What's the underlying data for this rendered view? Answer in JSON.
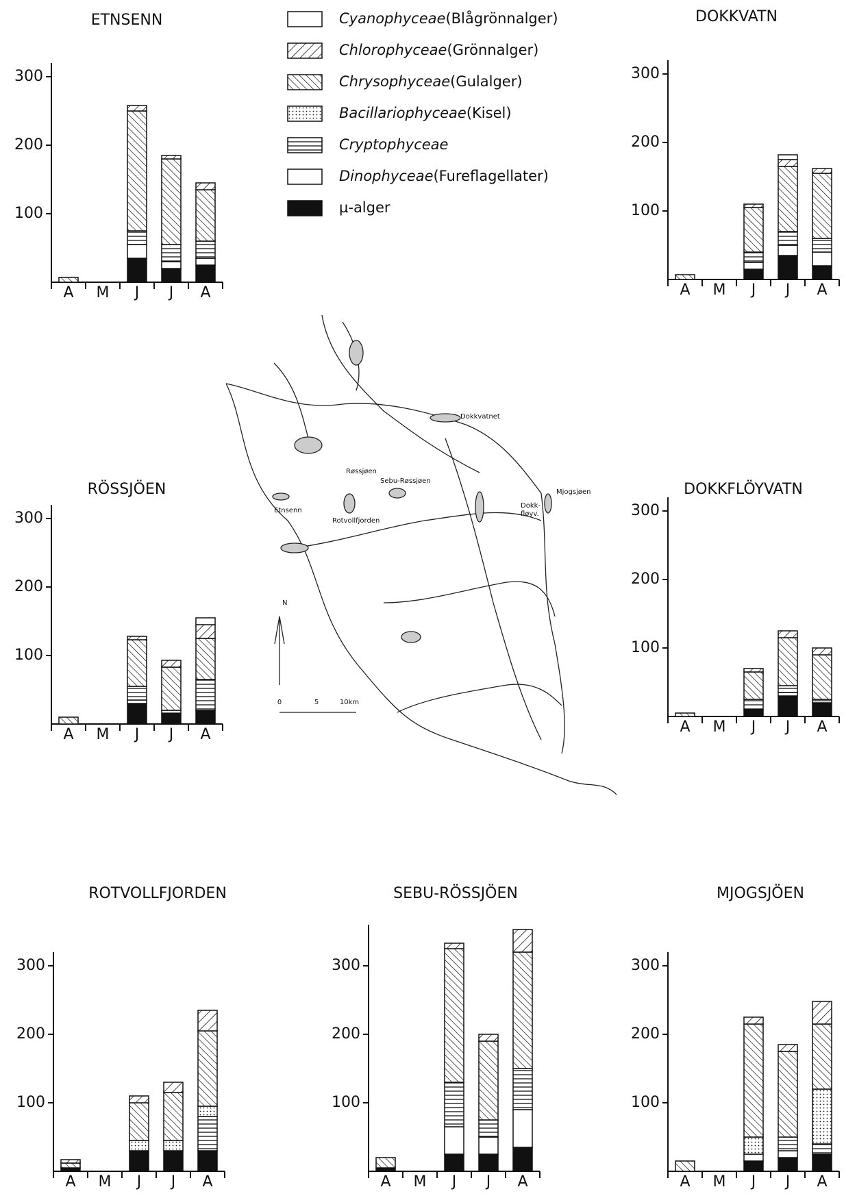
{
  "legend": [
    {
      "name": "Cyanophyceae",
      "note": "(Blågrönnalger)",
      "pattern": "blank"
    },
    {
      "name": "Chlorophyceae",
      "note": "(Grönnalger)",
      "pattern": "hatch-forward"
    },
    {
      "name": "Chrysophyceae",
      "note": "(Gulalger)",
      "pattern": "hatch-back"
    },
    {
      "name": "Bacillariophyceae",
      "note": "(Kisel)",
      "pattern": "dots"
    },
    {
      "name": "Cryptophyceae",
      "note": null,
      "pattern": "lines"
    },
    {
      "name": "Dinophyceae",
      "note": "(Fureflagellater)",
      "pattern": "blank"
    },
    {
      "name": "µ-alger",
      "note": null,
      "pattern": "solid"
    }
  ],
  "map": {
    "labels": [
      "Dokkvatnet",
      "Røssjøen",
      "Sebu-Røssjøen",
      "Mjogsjøen",
      "Etnsenn",
      "Rotvollfjorden",
      "Dokk-",
      "fløyv."
    ],
    "north": "N",
    "scale": [
      "0",
      "5",
      "10km"
    ]
  },
  "chart_data": [
    {
      "type": "stacked-bar",
      "title": "ETNSENN",
      "categories": [
        "A",
        "M",
        "J",
        "J",
        "A"
      ],
      "ylim": [
        0,
        320
      ],
      "yticks": [
        100,
        200,
        300
      ],
      "series": [
        {
          "values": [
            0,
            0,
            0,
            0,
            0
          ]
        },
        {
          "values": [
            0,
            0,
            8,
            5,
            10
          ]
        },
        {
          "values": [
            7,
            0,
            175,
            125,
            75
          ]
        },
        {
          "values": [
            0,
            0,
            0,
            0,
            0
          ]
        },
        {
          "values": [
            0,
            0,
            20,
            25,
            25
          ]
        },
        {
          "values": [
            0,
            0,
            20,
            10,
            10
          ]
        },
        {
          "values": [
            0,
            0,
            35,
            20,
            25
          ]
        }
      ]
    },
    {
      "type": "stacked-bar",
      "title": "DOKKVATN",
      "categories": [
        "A",
        "M",
        "J",
        "J",
        "A"
      ],
      "ylim": [
        0,
        320
      ],
      "yticks": [
        100,
        200,
        300
      ],
      "series": [
        {
          "values": [
            0,
            0,
            0,
            7,
            0
          ]
        },
        {
          "values": [
            0,
            0,
            5,
            10,
            7
          ]
        },
        {
          "values": [
            7,
            0,
            65,
            95,
            95
          ]
        },
        {
          "values": [
            0,
            0,
            0,
            0,
            0
          ]
        },
        {
          "values": [
            0,
            0,
            15,
            20,
            20
          ]
        },
        {
          "values": [
            0,
            0,
            10,
            15,
            20
          ]
        },
        {
          "values": [
            0,
            0,
            15,
            35,
            20
          ]
        }
      ]
    },
    {
      "type": "stacked-bar",
      "title": "RÖSSJÖEN",
      "categories": [
        "A",
        "M",
        "J",
        "J",
        "A"
      ],
      "ylim": [
        0,
        320
      ],
      "yticks": [
        100,
        200,
        300
      ],
      "series": [
        {
          "values": [
            0,
            0,
            0,
            0,
            10
          ]
        },
        {
          "values": [
            0,
            0,
            5,
            10,
            20
          ]
        },
        {
          "values": [
            10,
            0,
            68,
            63,
            60
          ]
        },
        {
          "values": [
            0,
            0,
            0,
            0,
            0
          ]
        },
        {
          "values": [
            0,
            0,
            20,
            5,
            45
          ]
        },
        {
          "values": [
            0,
            0,
            5,
            0,
            0
          ]
        },
        {
          "values": [
            0,
            0,
            30,
            15,
            20
          ]
        }
      ]
    },
    {
      "type": "stacked-bar",
      "title": "DOKKFLÖYVATN",
      "categories": [
        "A",
        "M",
        "J",
        "J",
        "A"
      ],
      "ylim": [
        0,
        320
      ],
      "yticks": [
        100,
        200,
        300
      ],
      "series": [
        {
          "values": [
            0,
            0,
            0,
            0,
            0
          ]
        },
        {
          "values": [
            0,
            0,
            5,
            10,
            10
          ]
        },
        {
          "values": [
            5,
            0,
            40,
            70,
            65
          ]
        },
        {
          "values": [
            0,
            0,
            0,
            0,
            0
          ]
        },
        {
          "values": [
            0,
            0,
            15,
            10,
            5
          ]
        },
        {
          "values": [
            0,
            0,
            0,
            5,
            0
          ]
        },
        {
          "values": [
            0,
            0,
            10,
            30,
            20
          ]
        }
      ]
    },
    {
      "type": "stacked-bar",
      "title": "ROTVOLLFJORDEN",
      "categories": [
        "A",
        "M",
        "J",
        "J",
        "A"
      ],
      "ylim": [
        0,
        320
      ],
      "yticks": [
        100,
        200,
        300
      ],
      "series": [
        {
          "values": [
            0,
            0,
            0,
            0,
            0
          ]
        },
        {
          "values": [
            5,
            0,
            10,
            15,
            30
          ]
        },
        {
          "values": [
            7,
            0,
            55,
            70,
            110
          ]
        },
        {
          "values": [
            0,
            0,
            15,
            15,
            15
          ]
        },
        {
          "values": [
            0,
            0,
            0,
            0,
            50
          ]
        },
        {
          "values": [
            0,
            0,
            0,
            0,
            0
          ]
        },
        {
          "values": [
            5,
            0,
            30,
            30,
            30
          ]
        }
      ]
    },
    {
      "type": "stacked-bar",
      "title": "SEBU-RÖSSJÖEN",
      "categories": [
        "A",
        "M",
        "J",
        "J",
        "A"
      ],
      "ylim": [
        0,
        360
      ],
      "yticks": [
        100,
        200,
        300
      ],
      "series": [
        {
          "values": [
            0,
            0,
            0,
            0,
            0
          ]
        },
        {
          "values": [
            0,
            0,
            8,
            10,
            33
          ]
        },
        {
          "values": [
            15,
            0,
            195,
            115,
            170
          ]
        },
        {
          "values": [
            0,
            0,
            0,
            0,
            0
          ]
        },
        {
          "values": [
            0,
            0,
            65,
            25,
            60
          ]
        },
        {
          "values": [
            0,
            0,
            40,
            25,
            55
          ]
        },
        {
          "values": [
            5,
            0,
            25,
            25,
            35
          ]
        }
      ]
    },
    {
      "type": "stacked-bar",
      "title": "MJOGSJÖEN",
      "categories": [
        "A",
        "M",
        "J",
        "J",
        "A"
      ],
      "ylim": [
        0,
        320
      ],
      "yticks": [
        100,
        200,
        300
      ],
      "series": [
        {
          "values": [
            0,
            0,
            0,
            0,
            0
          ]
        },
        {
          "values": [
            0,
            0,
            10,
            10,
            33
          ]
        },
        {
          "values": [
            15,
            0,
            165,
            125,
            95
          ]
        },
        {
          "values": [
            0,
            0,
            25,
            0,
            80
          ]
        },
        {
          "values": [
            0,
            0,
            0,
            20,
            15
          ]
        },
        {
          "values": [
            0,
            0,
            10,
            10,
            0
          ]
        },
        {
          "values": [
            0,
            0,
            15,
            20,
            25
          ]
        }
      ]
    }
  ]
}
